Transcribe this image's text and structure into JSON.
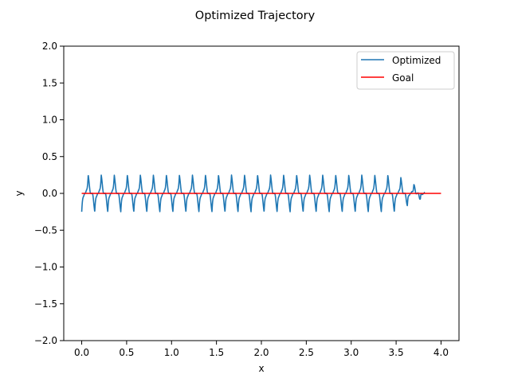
{
  "chart_data": {
    "type": "line",
    "title": "Optimized Trajectory",
    "xlabel": "x",
    "ylabel": "y",
    "xlim": [
      -0.2,
      4.2
    ],
    "ylim": [
      -2.0,
      2.0
    ],
    "xticks": [
      0.0,
      0.5,
      1.0,
      1.5,
      2.0,
      2.5,
      3.0,
      3.5,
      4.0
    ],
    "xtick_labels": [
      "0.0",
      "0.5",
      "1.0",
      "1.5",
      "2.0",
      "2.5",
      "3.0",
      "3.5",
      "4.0"
    ],
    "yticks": [
      -2.0,
      -1.5,
      -1.0,
      -0.5,
      0.0,
      0.5,
      1.0,
      1.5,
      2.0
    ],
    "ytick_labels": [
      "−2.0",
      "−1.5",
      "−1.0",
      "−0.5",
      "0.0",
      "0.5",
      "1.0",
      "1.5",
      "2.0"
    ],
    "grid": false,
    "legend_position": "top-right",
    "series": [
      {
        "name": "Optimized",
        "color": "#1f77b4",
        "pattern": "oscillating",
        "x_start": 0.0,
        "x_end": 3.82,
        "amplitude": 0.25,
        "period": 0.145
      },
      {
        "name": "Goal",
        "color": "#ff0000",
        "x": [
          0.0,
          4.0
        ],
        "y": [
          0.0,
          0.0
        ]
      }
    ]
  }
}
